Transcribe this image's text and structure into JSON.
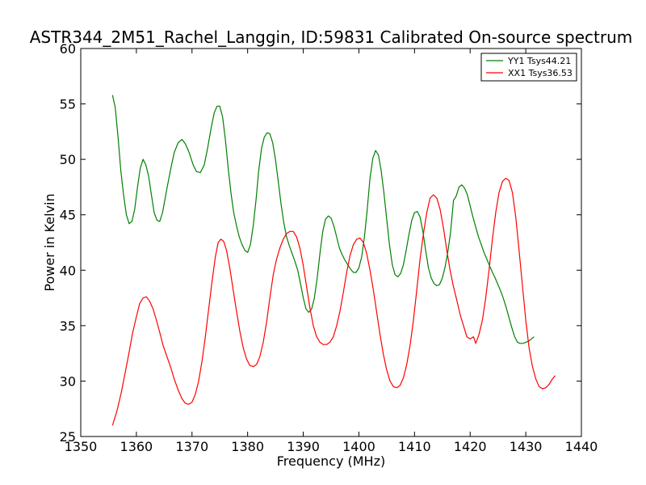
{
  "chart_data": {
    "type": "line",
    "title": "ASTR344_2M51_Rachel_Langgin, ID:59831 Calibrated On-source spectrum",
    "xlabel": "Frequency (MHz)",
    "ylabel": "Power in Kelvin",
    "xlim": [
      1350,
      1440
    ],
    "ylim": [
      25,
      60
    ],
    "xticks": [
      1350,
      1360,
      1370,
      1380,
      1390,
      1400,
      1410,
      1420,
      1430,
      1440
    ],
    "yticks": [
      25,
      30,
      35,
      40,
      45,
      50,
      55,
      60
    ],
    "grid": false,
    "legend_position": "top-right",
    "series": [
      {
        "name": "YY1 Tsys44.21",
        "color": "#008000",
        "points": [
          [
            1355.7,
            55.8
          ],
          [
            1356.2,
            54.7
          ],
          [
            1356.7,
            52.0
          ],
          [
            1357.2,
            49.0
          ],
          [
            1357.7,
            46.8
          ],
          [
            1358.2,
            45.0
          ],
          [
            1358.7,
            44.2
          ],
          [
            1359.2,
            44.4
          ],
          [
            1359.7,
            45.5
          ],
          [
            1360.2,
            47.5
          ],
          [
            1360.7,
            49.2
          ],
          [
            1361.2,
            50.0
          ],
          [
            1361.7,
            49.5
          ],
          [
            1362.2,
            48.5
          ],
          [
            1362.7,
            46.8
          ],
          [
            1363.2,
            45.2
          ],
          [
            1363.7,
            44.5
          ],
          [
            1364.2,
            44.4
          ],
          [
            1364.7,
            45.2
          ],
          [
            1365.5,
            47.4
          ],
          [
            1366.2,
            49.2
          ],
          [
            1366.8,
            50.6
          ],
          [
            1367.5,
            51.5
          ],
          [
            1368.2,
            51.8
          ],
          [
            1368.8,
            51.4
          ],
          [
            1369.5,
            50.6
          ],
          [
            1370.2,
            49.5
          ],
          [
            1370.8,
            48.9
          ],
          [
            1371.5,
            48.8
          ],
          [
            1372.2,
            49.5
          ],
          [
            1372.8,
            51.0
          ],
          [
            1373.5,
            53.0
          ],
          [
            1374.0,
            54.2
          ],
          [
            1374.5,
            54.8
          ],
          [
            1375.0,
            54.8
          ],
          [
            1375.5,
            53.8
          ],
          [
            1376.0,
            51.8
          ],
          [
            1376.5,
            49.2
          ],
          [
            1377.0,
            47.0
          ],
          [
            1377.5,
            45.2
          ],
          [
            1378.0,
            44.0
          ],
          [
            1378.5,
            43.0
          ],
          [
            1379.0,
            42.3
          ],
          [
            1379.5,
            41.8
          ],
          [
            1380.0,
            41.6
          ],
          [
            1380.5,
            42.3
          ],
          [
            1381.0,
            44.0
          ],
          [
            1381.5,
            46.3
          ],
          [
            1382.0,
            49.0
          ],
          [
            1382.5,
            51.0
          ],
          [
            1383.0,
            52.0
          ],
          [
            1383.5,
            52.4
          ],
          [
            1384.0,
            52.3
          ],
          [
            1384.5,
            51.5
          ],
          [
            1385.0,
            50.0
          ],
          [
            1385.5,
            48.0
          ],
          [
            1386.0,
            46.0
          ],
          [
            1386.5,
            44.3
          ],
          [
            1387.0,
            43.0
          ],
          [
            1387.5,
            42.2
          ],
          [
            1388.0,
            41.5
          ],
          [
            1388.5,
            40.8
          ],
          [
            1389.0,
            40.0
          ],
          [
            1389.5,
            38.8
          ],
          [
            1390.0,
            37.5
          ],
          [
            1390.5,
            36.5
          ],
          [
            1391.0,
            36.2
          ],
          [
            1391.5,
            36.5
          ],
          [
            1392.0,
            37.5
          ],
          [
            1392.5,
            39.3
          ],
          [
            1393.0,
            41.5
          ],
          [
            1393.5,
            43.5
          ],
          [
            1394.0,
            44.6
          ],
          [
            1394.5,
            44.9
          ],
          [
            1395.0,
            44.7
          ],
          [
            1395.5,
            44.0
          ],
          [
            1396.0,
            43.0
          ],
          [
            1396.5,
            42.0
          ],
          [
            1397.0,
            41.4
          ],
          [
            1397.5,
            40.9
          ],
          [
            1398.0,
            40.5
          ],
          [
            1398.5,
            40.1
          ],
          [
            1399.0,
            39.8
          ],
          [
            1399.5,
            39.8
          ],
          [
            1400.0,
            40.2
          ],
          [
            1400.5,
            41.2
          ],
          [
            1401.0,
            43.0
          ],
          [
            1401.5,
            45.5
          ],
          [
            1402.0,
            48.3
          ],
          [
            1402.5,
            50.1
          ],
          [
            1403.0,
            50.8
          ],
          [
            1403.5,
            50.4
          ],
          [
            1404.0,
            49.0
          ],
          [
            1404.5,
            47.0
          ],
          [
            1405.0,
            44.6
          ],
          [
            1405.5,
            42.3
          ],
          [
            1406.0,
            40.5
          ],
          [
            1406.5,
            39.6
          ],
          [
            1407.0,
            39.4
          ],
          [
            1407.5,
            39.7
          ],
          [
            1408.0,
            40.5
          ],
          [
            1408.5,
            41.8
          ],
          [
            1409.0,
            43.2
          ],
          [
            1409.5,
            44.5
          ],
          [
            1410.0,
            45.2
          ],
          [
            1410.5,
            45.3
          ],
          [
            1411.0,
            44.8
          ],
          [
            1411.5,
            43.5
          ],
          [
            1412.0,
            41.8
          ],
          [
            1412.5,
            40.2
          ],
          [
            1413.0,
            39.3
          ],
          [
            1413.5,
            38.8
          ],
          [
            1414.0,
            38.6
          ],
          [
            1414.5,
            38.7
          ],
          [
            1415.0,
            39.3
          ],
          [
            1415.5,
            40.3
          ],
          [
            1416.0,
            41.7
          ],
          [
            1416.5,
            43.5
          ],
          [
            1417.0,
            46.3
          ],
          [
            1417.5,
            46.7
          ],
          [
            1418.0,
            47.5
          ],
          [
            1418.5,
            47.7
          ],
          [
            1419.0,
            47.4
          ],
          [
            1419.5,
            46.8
          ],
          [
            1420.0,
            45.8
          ],
          [
            1420.5,
            44.8
          ],
          [
            1421.0,
            43.9
          ],
          [
            1421.5,
            43.0
          ],
          [
            1422.0,
            42.3
          ],
          [
            1422.5,
            41.6
          ],
          [
            1423.0,
            41.0
          ],
          [
            1423.5,
            40.4
          ],
          [
            1424.0,
            39.8
          ],
          [
            1424.5,
            39.3
          ],
          [
            1425.0,
            38.7
          ],
          [
            1425.5,
            38.1
          ],
          [
            1426.0,
            37.4
          ],
          [
            1426.5,
            36.6
          ],
          [
            1427.0,
            35.7
          ],
          [
            1427.5,
            34.8
          ],
          [
            1428.0,
            34.0
          ],
          [
            1428.5,
            33.5
          ],
          [
            1429.0,
            33.4
          ],
          [
            1429.5,
            33.4
          ],
          [
            1430.0,
            33.5
          ],
          [
            1430.5,
            33.6
          ],
          [
            1431.0,
            33.8
          ],
          [
            1431.5,
            34.0
          ]
        ]
      },
      {
        "name": "XX1 Tsys36.53",
        "color": "#ff0000",
        "points": [
          [
            1355.7,
            26.0
          ],
          [
            1356.5,
            27.3
          ],
          [
            1357.3,
            29.0
          ],
          [
            1358.0,
            30.8
          ],
          [
            1358.7,
            32.6
          ],
          [
            1359.3,
            34.3
          ],
          [
            1360.0,
            35.8
          ],
          [
            1360.6,
            37.0
          ],
          [
            1361.2,
            37.5
          ],
          [
            1361.8,
            37.6
          ],
          [
            1362.4,
            37.2
          ],
          [
            1363.0,
            36.5
          ],
          [
            1363.6,
            35.5
          ],
          [
            1364.2,
            34.4
          ],
          [
            1364.8,
            33.2
          ],
          [
            1365.5,
            32.2
          ],
          [
            1366.2,
            31.2
          ],
          [
            1366.8,
            30.2
          ],
          [
            1367.5,
            29.2
          ],
          [
            1368.2,
            28.4
          ],
          [
            1368.8,
            28.0
          ],
          [
            1369.4,
            27.9
          ],
          [
            1370.0,
            28.1
          ],
          [
            1370.6,
            28.8
          ],
          [
            1371.2,
            30.0
          ],
          [
            1371.8,
            31.8
          ],
          [
            1372.4,
            34.0
          ],
          [
            1373.0,
            36.5
          ],
          [
            1373.6,
            39.0
          ],
          [
            1374.2,
            41.2
          ],
          [
            1374.7,
            42.5
          ],
          [
            1375.2,
            42.8
          ],
          [
            1375.7,
            42.6
          ],
          [
            1376.2,
            41.8
          ],
          [
            1376.8,
            40.2
          ],
          [
            1377.4,
            38.2
          ],
          [
            1378.0,
            36.3
          ],
          [
            1378.6,
            34.5
          ],
          [
            1379.2,
            33.0
          ],
          [
            1379.8,
            32.0
          ],
          [
            1380.4,
            31.4
          ],
          [
            1381.0,
            31.3
          ],
          [
            1381.6,
            31.5
          ],
          [
            1382.2,
            32.2
          ],
          [
            1382.8,
            33.5
          ],
          [
            1383.4,
            35.3
          ],
          [
            1384.0,
            37.5
          ],
          [
            1384.6,
            39.6
          ],
          [
            1385.2,
            41.0
          ],
          [
            1385.8,
            42.0
          ],
          [
            1386.4,
            42.8
          ],
          [
            1387.0,
            43.3
          ],
          [
            1387.6,
            43.5
          ],
          [
            1388.2,
            43.5
          ],
          [
            1388.8,
            43.0
          ],
          [
            1389.4,
            42.0
          ],
          [
            1390.0,
            40.4
          ],
          [
            1390.6,
            38.5
          ],
          [
            1391.2,
            36.6
          ],
          [
            1391.8,
            35.0
          ],
          [
            1392.4,
            34.0
          ],
          [
            1393.0,
            33.5
          ],
          [
            1393.6,
            33.3
          ],
          [
            1394.2,
            33.3
          ],
          [
            1394.8,
            33.5
          ],
          [
            1395.4,
            34.0
          ],
          [
            1396.0,
            35.0
          ],
          [
            1396.6,
            36.3
          ],
          [
            1397.2,
            38.0
          ],
          [
            1397.8,
            39.8
          ],
          [
            1398.4,
            41.3
          ],
          [
            1399.0,
            42.3
          ],
          [
            1399.6,
            42.8
          ],
          [
            1400.2,
            42.9
          ],
          [
            1400.8,
            42.5
          ],
          [
            1401.4,
            41.5
          ],
          [
            1402.0,
            40.0
          ],
          [
            1402.6,
            38.2
          ],
          [
            1403.2,
            36.2
          ],
          [
            1403.8,
            34.2
          ],
          [
            1404.4,
            32.4
          ],
          [
            1405.0,
            31.0
          ],
          [
            1405.6,
            30.0
          ],
          [
            1406.2,
            29.5
          ],
          [
            1406.8,
            29.4
          ],
          [
            1407.4,
            29.6
          ],
          [
            1408.0,
            30.3
          ],
          [
            1408.6,
            31.5
          ],
          [
            1409.2,
            33.2
          ],
          [
            1409.8,
            35.5
          ],
          [
            1410.4,
            38.2
          ],
          [
            1411.0,
            41.0
          ],
          [
            1411.6,
            43.3
          ],
          [
            1412.2,
            45.2
          ],
          [
            1412.8,
            46.5
          ],
          [
            1413.4,
            46.8
          ],
          [
            1414.0,
            46.5
          ],
          [
            1414.6,
            45.5
          ],
          [
            1415.2,
            43.8
          ],
          [
            1415.8,
            41.8
          ],
          [
            1416.4,
            40.0
          ],
          [
            1417.0,
            38.5
          ],
          [
            1417.6,
            37.3
          ],
          [
            1418.2,
            36.0
          ],
          [
            1418.8,
            35.0
          ],
          [
            1419.4,
            34.0
          ],
          [
            1420.0,
            33.8
          ],
          [
            1420.6,
            34.0
          ],
          [
            1421.0,
            33.4
          ],
          [
            1421.6,
            34.2
          ],
          [
            1422.2,
            35.5
          ],
          [
            1422.8,
            37.5
          ],
          [
            1423.4,
            40.0
          ],
          [
            1424.0,
            42.8
          ],
          [
            1424.6,
            45.2
          ],
          [
            1425.2,
            47.0
          ],
          [
            1425.8,
            48.0
          ],
          [
            1426.4,
            48.3
          ],
          [
            1427.0,
            48.1
          ],
          [
            1427.6,
            47.0
          ],
          [
            1428.2,
            44.8
          ],
          [
            1428.8,
            41.8
          ],
          [
            1429.4,
            38.6
          ],
          [
            1430.0,
            35.5
          ],
          [
            1430.6,
            33.0
          ],
          [
            1431.2,
            31.3
          ],
          [
            1431.8,
            30.2
          ],
          [
            1432.4,
            29.5
          ],
          [
            1433.0,
            29.3
          ],
          [
            1433.6,
            29.4
          ],
          [
            1434.2,
            29.7
          ],
          [
            1434.8,
            30.2
          ],
          [
            1435.3,
            30.5
          ]
        ]
      }
    ]
  }
}
